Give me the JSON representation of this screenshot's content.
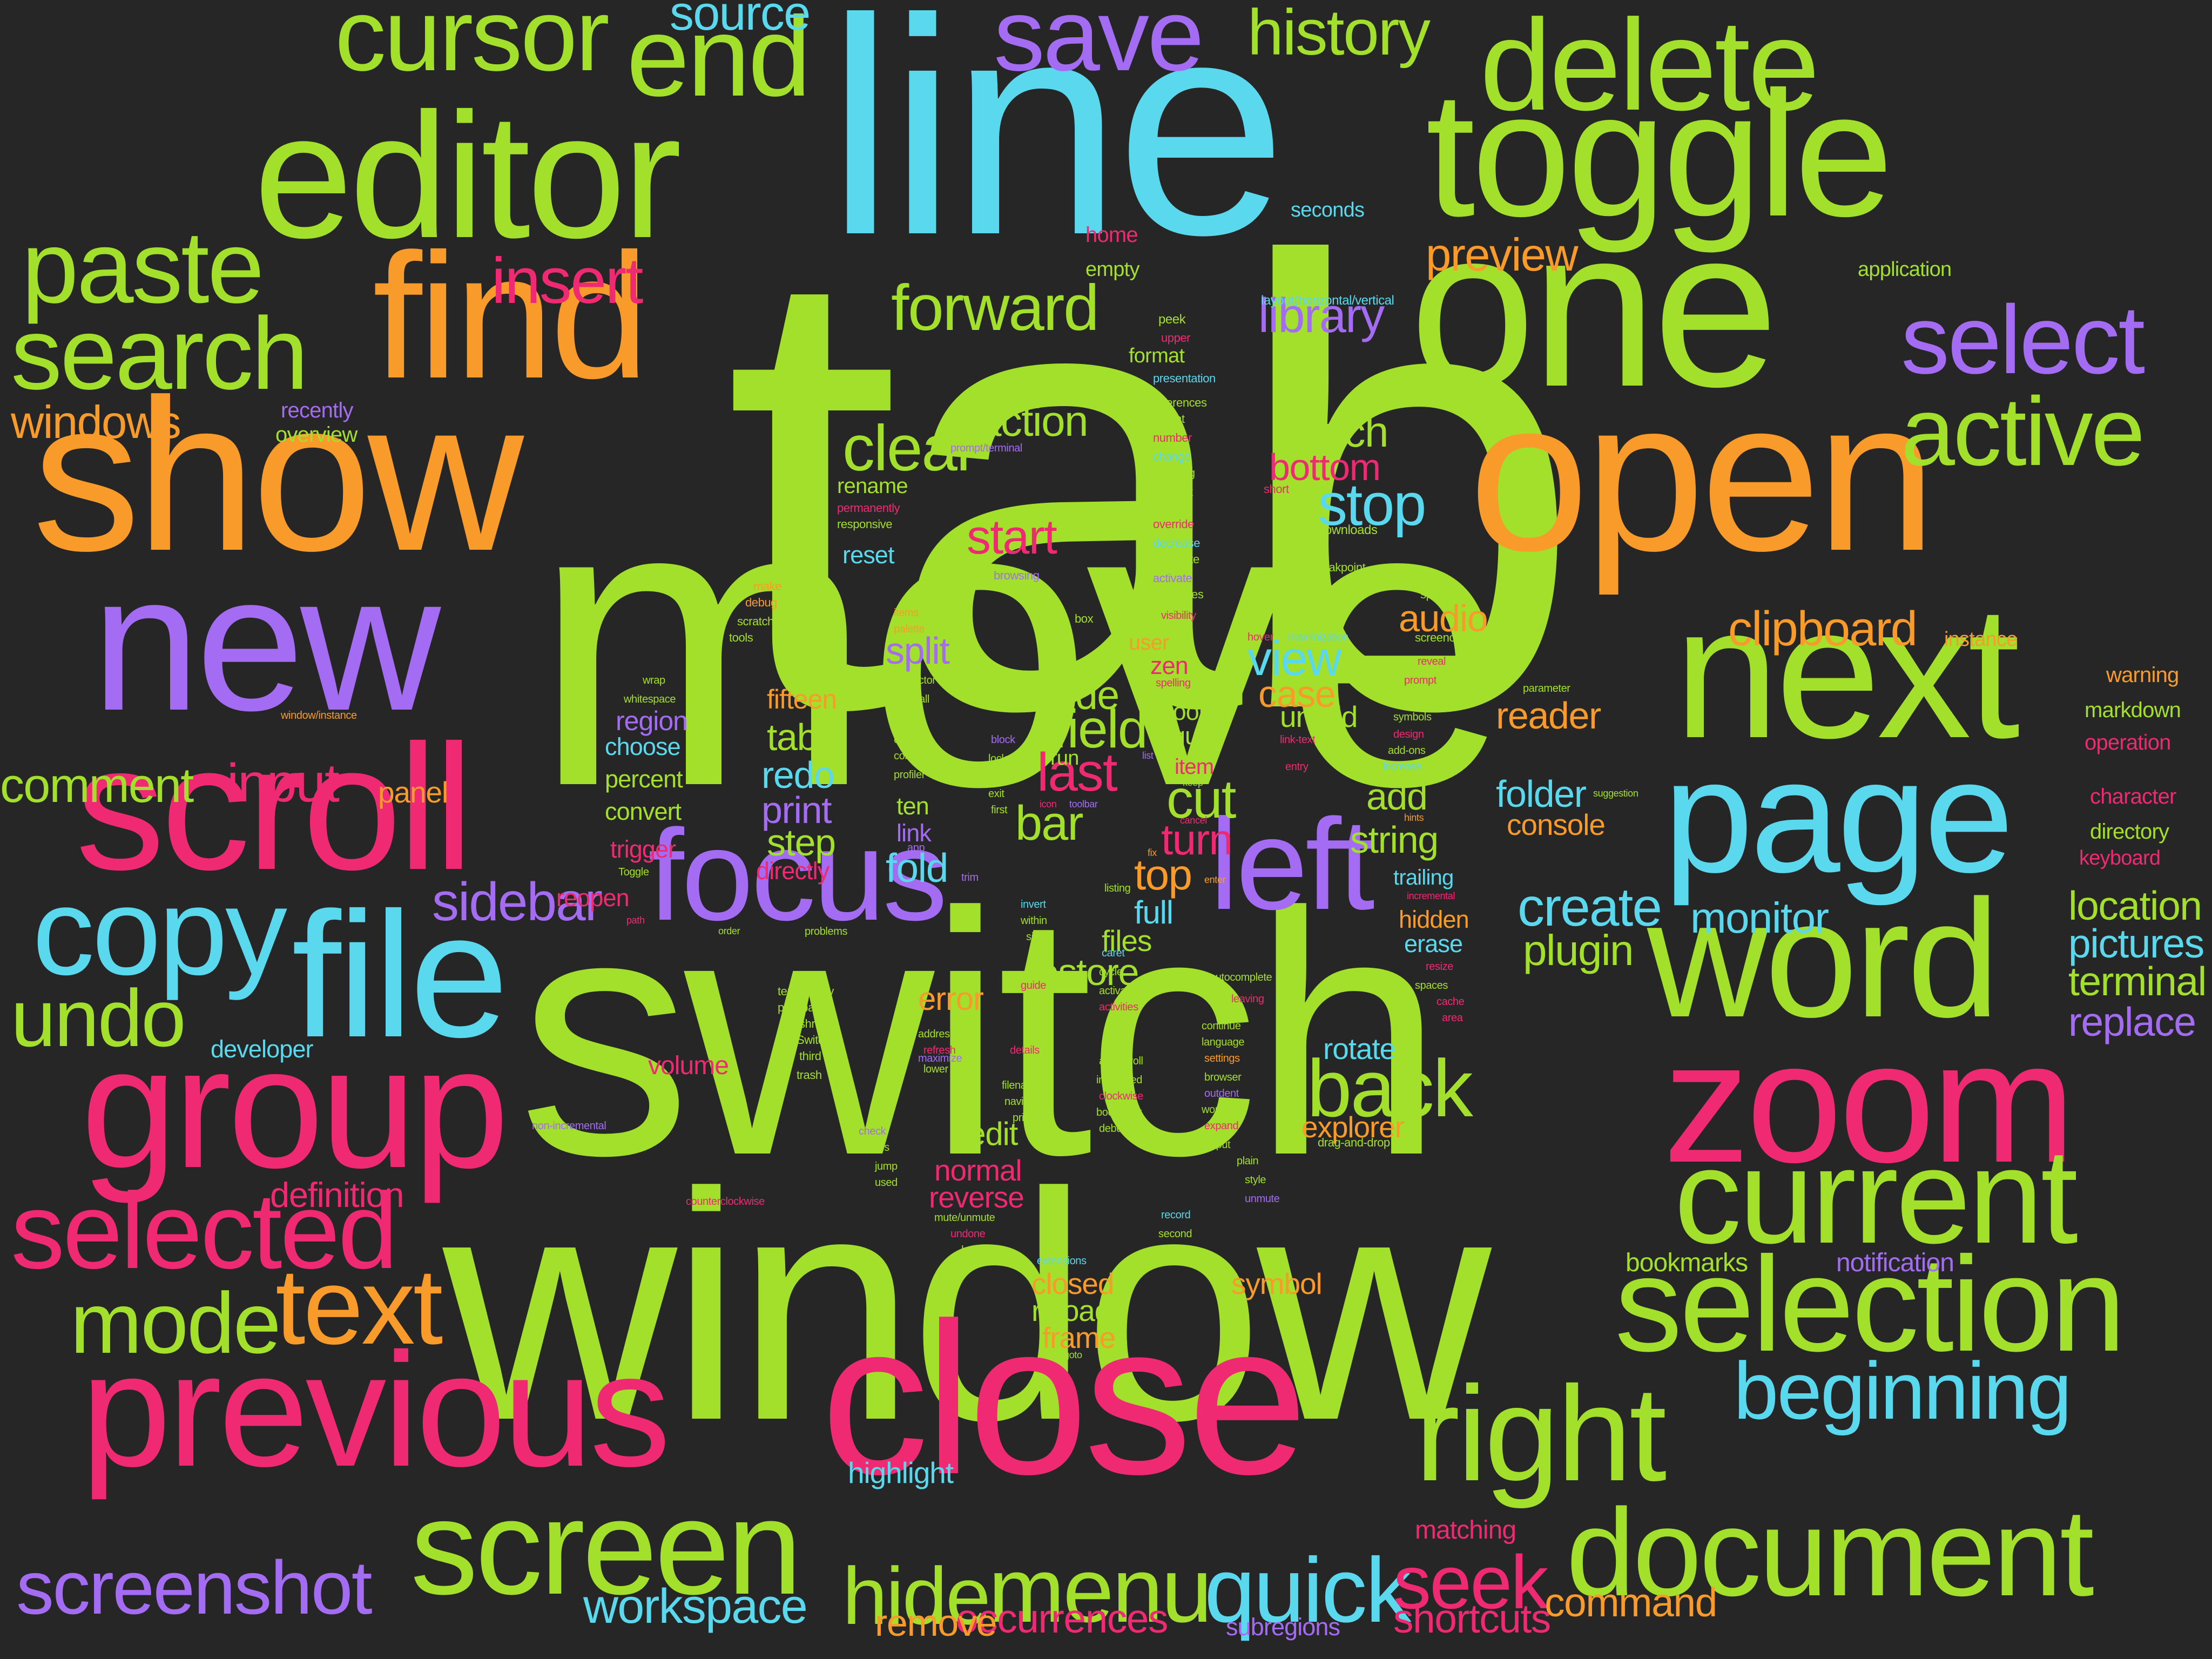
{
  "colors": {
    "background": "#262626",
    "lime": "#a3e02b",
    "cyan": "#5ad8ee",
    "orange": "#f99b2a",
    "pink": "#ef2a72",
    "purple": "#a46cf3"
  },
  "words": [
    {
      "text": "tab",
      "color": "lime"
    },
    {
      "text": "move",
      "color": "lime"
    },
    {
      "text": "switch",
      "color": "lime"
    },
    {
      "text": "window",
      "color": "lime"
    },
    {
      "text": "line",
      "color": "cyan"
    },
    {
      "text": "show",
      "color": "orange"
    },
    {
      "text": "close",
      "color": "pink"
    },
    {
      "text": "one",
      "color": "lime"
    },
    {
      "text": "open",
      "color": "orange"
    },
    {
      "text": "editor",
      "color": "lime"
    },
    {
      "text": "new",
      "color": "purple"
    },
    {
      "text": "next",
      "color": "lime"
    },
    {
      "text": "previous",
      "color": "pink"
    },
    {
      "text": "toggle",
      "color": "lime"
    },
    {
      "text": "find",
      "color": "orange"
    },
    {
      "text": "scroll",
      "color": "pink"
    },
    {
      "text": "page",
      "color": "cyan"
    },
    {
      "text": "file",
      "color": "cyan"
    },
    {
      "text": "word",
      "color": "lime"
    },
    {
      "text": "zoom",
      "color": "pink"
    },
    {
      "text": "focus",
      "color": "purple"
    },
    {
      "text": "left",
      "color": "purple"
    },
    {
      "text": "group",
      "color": "pink"
    },
    {
      "text": "delete",
      "color": "lime"
    },
    {
      "text": "current",
      "color": "lime"
    },
    {
      "text": "selection",
      "color": "lime"
    },
    {
      "text": "right",
      "color": "lime"
    },
    {
      "text": "screen",
      "color": "lime"
    },
    {
      "text": "document",
      "color": "lime"
    },
    {
      "text": "copy",
      "color": "cyan"
    },
    {
      "text": "selected",
      "color": "pink"
    },
    {
      "text": "end",
      "color": "lime"
    },
    {
      "text": "save",
      "color": "purple"
    },
    {
      "text": "cursor",
      "color": "lime"
    },
    {
      "text": "paste",
      "color": "lime"
    },
    {
      "text": "search",
      "color": "lime"
    },
    {
      "text": "select",
      "color": "purple"
    },
    {
      "text": "active",
      "color": "lime"
    },
    {
      "text": "text",
      "color": "orange"
    },
    {
      "text": "mode",
      "color": "lime"
    },
    {
      "text": "undo",
      "color": "lime"
    },
    {
      "text": "beginning",
      "color": "cyan"
    },
    {
      "text": "menu",
      "color": "lime"
    },
    {
      "text": "hide",
      "color": "lime"
    },
    {
      "text": "quick",
      "color": "cyan"
    },
    {
      "text": "seek",
      "color": "pink"
    },
    {
      "text": "screenshot",
      "color": "purple"
    },
    {
      "text": "back",
      "color": "lime"
    },
    {
      "text": "history",
      "color": "lime"
    },
    {
      "text": "source",
      "color": "cyan"
    },
    {
      "text": "insert",
      "color": "pink"
    },
    {
      "text": "forward",
      "color": "lime"
    },
    {
      "text": "clear",
      "color": "lime"
    },
    {
      "text": "preview",
      "color": "orange"
    },
    {
      "text": "library",
      "color": "purple"
    },
    {
      "text": "windows",
      "color": "orange"
    },
    {
      "text": "comment",
      "color": "lime"
    },
    {
      "text": "input",
      "color": "pink"
    },
    {
      "text": "sidebar",
      "color": "purple"
    },
    {
      "text": "stop",
      "color": "cyan"
    },
    {
      "text": "start",
      "color": "pink"
    },
    {
      "text": "clipboard",
      "color": "orange"
    },
    {
      "text": "last",
      "color": "pink"
    },
    {
      "text": "workspace",
      "color": "cyan"
    },
    {
      "text": "shortcuts",
      "color": "pink"
    },
    {
      "text": "occurrences",
      "color": "pink"
    },
    {
      "text": "remove",
      "color": "orange"
    },
    {
      "text": "command",
      "color": "orange"
    },
    {
      "text": "create",
      "color": "cyan"
    },
    {
      "text": "plugin",
      "color": "lime"
    },
    {
      "text": "monitor",
      "color": "cyan"
    },
    {
      "text": "location",
      "color": "lime"
    },
    {
      "text": "pictures",
      "color": "cyan"
    },
    {
      "text": "terminal",
      "color": "lime"
    },
    {
      "text": "replace",
      "color": "purple"
    },
    {
      "text": "field",
      "color": "lime"
    },
    {
      "text": "turn",
      "color": "pink"
    },
    {
      "text": "top",
      "color": "orange"
    },
    {
      "text": "cut",
      "color": "lime"
    },
    {
      "text": "bar",
      "color": "lime"
    },
    {
      "text": "view",
      "color": "cyan"
    },
    {
      "text": "case",
      "color": "orange"
    },
    {
      "text": "fold",
      "color": "cyan"
    },
    {
      "text": "match",
      "color": "lime"
    },
    {
      "text": "bottom",
      "color": "pink"
    },
    {
      "text": "action",
      "color": "lime"
    },
    {
      "text": "split",
      "color": "purple"
    },
    {
      "text": "tabs",
      "color": "lime"
    },
    {
      "text": "redo",
      "color": "cyan"
    },
    {
      "text": "print",
      "color": "purple"
    },
    {
      "text": "step",
      "color": "lime"
    },
    {
      "text": "audio",
      "color": "orange"
    },
    {
      "text": "reader",
      "color": "orange"
    },
    {
      "text": "folder",
      "color": "cyan"
    },
    {
      "text": "console",
      "color": "orange"
    },
    {
      "text": "string",
      "color": "lime"
    },
    {
      "text": "add",
      "color": "lime"
    },
    {
      "text": "side",
      "color": "lime"
    },
    {
      "text": "restore",
      "color": "lime"
    },
    {
      "text": "full",
      "color": "cyan"
    },
    {
      "text": "files",
      "color": "lime"
    },
    {
      "text": "error",
      "color": "orange"
    },
    {
      "text": "rotate",
      "color": "cyan"
    },
    {
      "text": "explorer",
      "color": "orange"
    },
    {
      "text": "gedit",
      "color": "lime"
    },
    {
      "text": "normal",
      "color": "pink"
    },
    {
      "text": "reverse",
      "color": "pink"
    },
    {
      "text": "closed",
      "color": "orange"
    },
    {
      "text": "reload",
      "color": "lime"
    },
    {
      "text": "frame",
      "color": "orange"
    },
    {
      "text": "symbol",
      "color": "orange"
    },
    {
      "text": "highlight",
      "color": "cyan"
    },
    {
      "text": "matching",
      "color": "pink"
    },
    {
      "text": "subregions",
      "color": "purple"
    },
    {
      "text": "bookmarks",
      "color": "lime"
    },
    {
      "text": "notification",
      "color": "purple"
    },
    {
      "text": "definition",
      "color": "pink"
    },
    {
      "text": "developer",
      "color": "cyan"
    },
    {
      "text": "volume",
      "color": "pink"
    },
    {
      "text": "panel",
      "color": "orange"
    },
    {
      "text": "fifteen",
      "color": "orange"
    },
    {
      "text": "region",
      "color": "purple"
    },
    {
      "text": "choose",
      "color": "cyan"
    },
    {
      "text": "percent",
      "color": "lime"
    },
    {
      "text": "convert",
      "color": "lime"
    },
    {
      "text": "trigger",
      "color": "pink"
    },
    {
      "text": "directly",
      "color": "pink"
    },
    {
      "text": "reopen",
      "color": "pink"
    },
    {
      "text": "ten",
      "color": "lime"
    },
    {
      "text": "link",
      "color": "purple"
    },
    {
      "text": "unfold",
      "color": "lime"
    },
    {
      "text": "quit",
      "color": "lime"
    },
    {
      "text": "tool",
      "color": "lime"
    },
    {
      "text": "item",
      "color": "pink"
    },
    {
      "text": "zen",
      "color": "pink"
    },
    {
      "text": "user",
      "color": "orange"
    },
    {
      "text": "hidden",
      "color": "orange"
    },
    {
      "text": "erase",
      "color": "cyan"
    },
    {
      "text": "trailing",
      "color": "cyan"
    },
    {
      "text": "reset",
      "color": "cyan"
    },
    {
      "text": "rename",
      "color": "lime"
    },
    {
      "text": "recently",
      "color": "purple"
    },
    {
      "text": "overview",
      "color": "lime"
    },
    {
      "text": "home",
      "color": "pink"
    },
    {
      "text": "empty",
      "color": "lime"
    },
    {
      "text": "format",
      "color": "lime"
    },
    {
      "text": "seconds",
      "color": "cyan"
    },
    {
      "text": "application",
      "color": "lime"
    },
    {
      "text": "instance",
      "color": "orange"
    },
    {
      "text": "warning",
      "color": "orange"
    },
    {
      "text": "markdown",
      "color": "lime"
    },
    {
      "text": "operation",
      "color": "pink"
    },
    {
      "text": "character",
      "color": "pink"
    },
    {
      "text": "directory",
      "color": "lime"
    },
    {
      "text": "keyboard",
      "color": "pink"
    },
    {
      "text": "run",
      "color": "lime"
    },
    {
      "text": "layout(horizontal/vertical",
      "color": "cyan"
    },
    {
      "text": "peek",
      "color": "lime"
    },
    {
      "text": "upper",
      "color": "pink"
    },
    {
      "text": "presentation",
      "color": "cyan"
    },
    {
      "text": "references",
      "color": "lime"
    },
    {
      "text": "recent",
      "color": "lime"
    },
    {
      "text": "number",
      "color": "pink"
    },
    {
      "text": "change",
      "color": "cyan"
    },
    {
      "text": "showing",
      "color": "lime"
    },
    {
      "text": "network",
      "color": "lime"
    },
    {
      "text": "bracket",
      "color": "lime"
    },
    {
      "text": "override",
      "color": "pink"
    },
    {
      "text": "decrease",
      "color": "cyan"
    },
    {
      "text": "complete",
      "color": "lime"
    },
    {
      "text": "activate",
      "color": "purple"
    },
    {
      "text": "properties",
      "color": "lime"
    },
    {
      "text": "visibility",
      "color": "pink"
    },
    {
      "text": "prompt/terminal",
      "color": "purple"
    },
    {
      "text": "short",
      "color": "pink"
    },
    {
      "text": "downloads",
      "color": "lime"
    },
    {
      "text": "breakpoint",
      "color": "lime"
    },
    {
      "text": "applications",
      "color": "lime"
    },
    {
      "text": "browsing",
      "color": "purple"
    },
    {
      "text": "permanently",
      "color": "pink"
    },
    {
      "text": "responsive",
      "color": "lime"
    },
    {
      "text": "make",
      "color": "orange"
    },
    {
      "text": "debug",
      "color": "orange"
    },
    {
      "text": "scratchpad",
      "color": "lime"
    },
    {
      "text": "tools",
      "color": "lime"
    },
    {
      "text": "items",
      "color": "orange"
    },
    {
      "text": "palette",
      "color": "orange"
    },
    {
      "text": "box",
      "color": "lime"
    },
    {
      "text": "hover",
      "color": "pink"
    },
    {
      "text": "maximization",
      "color": "cyan"
    },
    {
      "text": "space",
      "color": "lime"
    },
    {
      "text": "screencast",
      "color": "lime"
    },
    {
      "text": "wrap",
      "color": "lime"
    },
    {
      "text": "whitespace",
      "color": "lime"
    },
    {
      "text": "inspector",
      "color": "lime"
    },
    {
      "text": "unfoldall",
      "color": "lime"
    },
    {
      "text": "window/instance",
      "color": "orange"
    },
    {
      "text": "default",
      "color": "lime"
    },
    {
      "text": "control",
      "color": "lime"
    },
    {
      "text": "context",
      "color": "lime"
    },
    {
      "text": "profiler",
      "color": "lime"
    },
    {
      "text": "app",
      "color": "purple"
    },
    {
      "text": "Toggle",
      "color": "lime"
    },
    {
      "text": "trim",
      "color": "purple"
    },
    {
      "text": "block",
      "color": "purple"
    },
    {
      "text": "lock",
      "color": "lime"
    },
    {
      "text": "info",
      "color": "lime"
    },
    {
      "text": "exit",
      "color": "lime"
    },
    {
      "text": "first",
      "color": "lime"
    },
    {
      "text": "help",
      "color": "lime"
    },
    {
      "text": "toolbar",
      "color": "purple"
    },
    {
      "text": "list",
      "color": "purple"
    },
    {
      "text": "icon",
      "color": "pink"
    },
    {
      "text": "spelling",
      "color": "pink"
    },
    {
      "text": "keep",
      "color": "lime"
    },
    {
      "text": "cancel",
      "color": "pink"
    },
    {
      "text": "fix",
      "color": "orange"
    },
    {
      "text": "listing",
      "color": "lime"
    },
    {
      "text": "enter",
      "color": "orange"
    },
    {
      "text": "reveal",
      "color": "pink"
    },
    {
      "text": "prompt",
      "color": "pink"
    },
    {
      "text": "indent",
      "color": "lime"
    },
    {
      "text": "symbols",
      "color": "lime"
    },
    {
      "text": "design",
      "color": "pink"
    },
    {
      "text": "add-ons",
      "color": "lime"
    },
    {
      "text": "increase",
      "color": "cyan"
    },
    {
      "text": "link-text",
      "color": "pink"
    },
    {
      "text": "entry",
      "color": "pink"
    },
    {
      "text": "parameter",
      "color": "lime"
    },
    {
      "text": "suggestion",
      "color": "lime"
    },
    {
      "text": "hints",
      "color": "orange"
    },
    {
      "text": "incremental",
      "color": "pink"
    },
    {
      "text": "resize",
      "color": "pink"
    },
    {
      "text": "spaces",
      "color": "lime"
    },
    {
      "text": "cache",
      "color": "pink"
    },
    {
      "text": "area",
      "color": "pink"
    },
    {
      "text": "path",
      "color": "pink"
    },
    {
      "text": "order",
      "color": "lime"
    },
    {
      "text": "problems",
      "color": "lime"
    },
    {
      "text": "invert",
      "color": "cyan"
    },
    {
      "text": "within",
      "color": "lime"
    },
    {
      "text": "size",
      "color": "lime"
    },
    {
      "text": "mute",
      "color": "lime"
    },
    {
      "text": "temporarily",
      "color": "lime"
    },
    {
      "text": "play/pause",
      "color": "lime"
    },
    {
      "text": "shrink",
      "color": "lime"
    },
    {
      "text": "Switch",
      "color": "lime"
    },
    {
      "text": "third",
      "color": "lime"
    },
    {
      "text": "trash",
      "color": "lime"
    },
    {
      "text": "maximize",
      "color": "purple"
    },
    {
      "text": "address",
      "color": "lime"
    },
    {
      "text": "refresh",
      "color": "pink"
    },
    {
      "text": "lower",
      "color": "lime"
    },
    {
      "text": "guide",
      "color": "pink"
    },
    {
      "text": "web",
      "color": "lime"
    },
    {
      "text": "details",
      "color": "pink"
    },
    {
      "text": "caret",
      "color": "cyan"
    },
    {
      "text": "cycle",
      "color": "lime"
    },
    {
      "text": "activation",
      "color": "lime"
    },
    {
      "text": "activities",
      "color": "pink"
    },
    {
      "text": "integrated",
      "color": "lime"
    },
    {
      "text": "clockwise",
      "color": "pink"
    },
    {
      "text": "bookmark",
      "color": "lime"
    },
    {
      "text": "debugger",
      "color": "lime"
    },
    {
      "text": "autocomplete",
      "color": "lime"
    },
    {
      "text": "leaving",
      "color": "pink"
    },
    {
      "text": "continue",
      "color": "lime"
    },
    {
      "text": "language",
      "color": "lime"
    },
    {
      "text": "settings",
      "color": "orange"
    },
    {
      "text": "browser",
      "color": "lime"
    },
    {
      "text": "outdent",
      "color": "purple"
    },
    {
      "text": "working",
      "color": "lime"
    },
    {
      "text": "expand",
      "color": "pink"
    },
    {
      "text": "output",
      "color": "lime"
    },
    {
      "text": "autoscroll",
      "color": "lime"
    },
    {
      "text": "filename",
      "color": "lime"
    },
    {
      "text": "navigate",
      "color": "lime"
    },
    {
      "text": "private",
      "color": "lime"
    },
    {
      "text": "drag-and-drop",
      "color": "lime"
    },
    {
      "text": "plain",
      "color": "lime"
    },
    {
      "text": "style",
      "color": "lime"
    },
    {
      "text": "unmute",
      "color": "purple"
    },
    {
      "text": "record",
      "color": "cyan"
    },
    {
      "text": "second",
      "color": "lime"
    },
    {
      "text": "state",
      "color": "lime"
    },
    {
      "text": "extensions",
      "color": "cyan"
    },
    {
      "text": "goto",
      "color": "lime"
    },
    {
      "text": "check",
      "color": "purple"
    },
    {
      "text": "moves",
      "color": "lime"
    },
    {
      "text": "jump",
      "color": "lime"
    },
    {
      "text": "used",
      "color": "lime"
    },
    {
      "text": "counterclockwise",
      "color": "pink"
    },
    {
      "text": "non-incremental",
      "color": "purple"
    },
    {
      "text": "mute/unmute",
      "color": "lime"
    },
    {
      "text": "undone",
      "color": "pink"
    },
    {
      "text": "hand",
      "color": "lime"
    }
  ]
}
